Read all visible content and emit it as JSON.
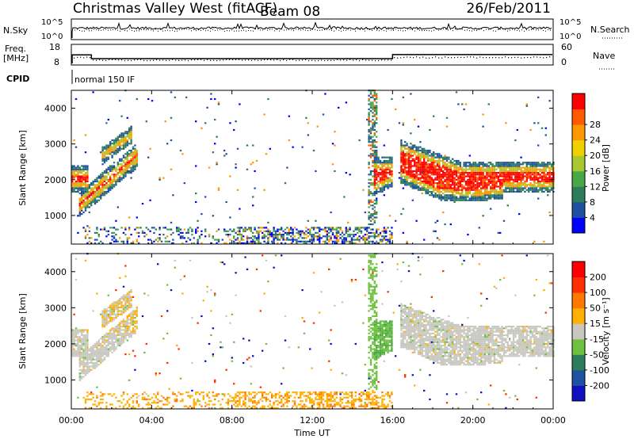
{
  "header": {
    "station": "Christmas Valley West (fitACF)",
    "beam": "Beam 08",
    "date": "26/Feb/2011"
  },
  "top_panels": {
    "noise_left_label": "N.Sky",
    "noise_right_label": "N.Search",
    "noise_left_ticks": [
      "10^5",
      "10^0"
    ],
    "noise_right_ticks": [
      "10^5",
      "10^0"
    ],
    "freq_label_line1": "Freq.",
    "freq_label_line2": "[MHz]",
    "freq_ticks": [
      "18",
      "8"
    ],
    "nave_label": "Nave",
    "nave_ticks": [
      "60",
      "0"
    ],
    "cpid_label": "CPID",
    "cpid_text": "normal 150 IF"
  },
  "chart_data": [
    {
      "type": "heatmap",
      "ylabel": "Slant Range [km]",
      "y_ticks": [
        "1000",
        "2000",
        "3000",
        "4000"
      ],
      "ylim": [
        200,
        4500
      ],
      "colorbar_label": "Power [dB]",
      "colorbar_ticks": [
        "4",
        "8",
        "12",
        "16",
        "20",
        "24",
        "28"
      ],
      "colors": [
        "#0000ff",
        "#1f4fa0",
        "#2e7d5a",
        "#48a848",
        "#a8c830",
        "#f0d000",
        "#ff9800",
        "#ff5a00",
        "#ff0000"
      ],
      "regions": [
        {
          "t0": 0.0,
          "t1": 3.3,
          "r0": 1100,
          "r1": 3300,
          "desc": "strong echoes"
        },
        {
          "t0": 15.5,
          "t1": 24.0,
          "r0": 1200,
          "r1": 3300,
          "desc": "strong echoes"
        },
        {
          "t0": 0.0,
          "t1": 16.0,
          "r0": 200,
          "r1": 700,
          "desc": "near-range weak echoes"
        }
      ]
    },
    {
      "type": "heatmap",
      "ylabel": "Slant Range [km]",
      "xlabel": "Time UT",
      "x_ticks": [
        "00:00",
        "04:00",
        "08:00",
        "12:00",
        "16:00",
        "20:00",
        "00:00"
      ],
      "y_ticks": [
        "1000",
        "2000",
        "3000",
        "4000"
      ],
      "ylim": [
        200,
        4500
      ],
      "colorbar_label": "Velocity [m s⁻¹]",
      "colorbar_ticks": [
        "200",
        "100",
        "50",
        "15",
        "-15",
        "-50",
        "-100",
        "-200"
      ],
      "colors": [
        "#1010c0",
        "#2050a0",
        "#2e7d5a",
        "#70c040",
        "#c8c8c0",
        "#ffb000",
        "#ff7800",
        "#ff3000",
        "#ff0000"
      ]
    }
  ]
}
